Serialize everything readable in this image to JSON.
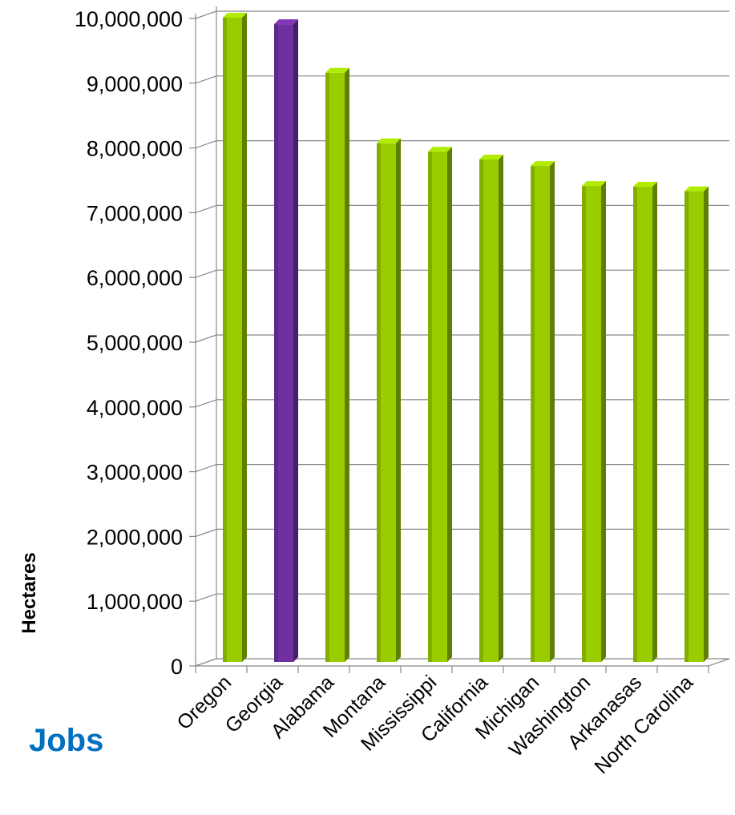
{
  "footer": {
    "text": "Jobs"
  },
  "colors": {
    "default_bar": "#9acd00",
    "highlight_bar": "#7030a0",
    "grid": "#888888"
  },
  "chart_data": {
    "type": "bar",
    "ylabel": "Hectares",
    "categories": [
      "Oregon",
      "Georgia",
      "Alabama",
      "Montana",
      "Mississippi",
      "California",
      "Michigan",
      "Washington",
      "Arkanasas",
      "North Carolina"
    ],
    "values": [
      9950000,
      9850000,
      9100000,
      8010000,
      7880000,
      7760000,
      7660000,
      7350000,
      7340000,
      7270000
    ],
    "highlight": [
      "Georgia"
    ],
    "ylim": [
      0,
      10000000
    ],
    "yticks": [
      "0",
      "1,000,000",
      "2,000,000",
      "3,000,000",
      "4,000,000",
      "5,000,000",
      "6,000,000",
      "7,000,000",
      "8,000,000",
      "9,000,000",
      "10,000,000"
    ],
    "grid": true
  }
}
